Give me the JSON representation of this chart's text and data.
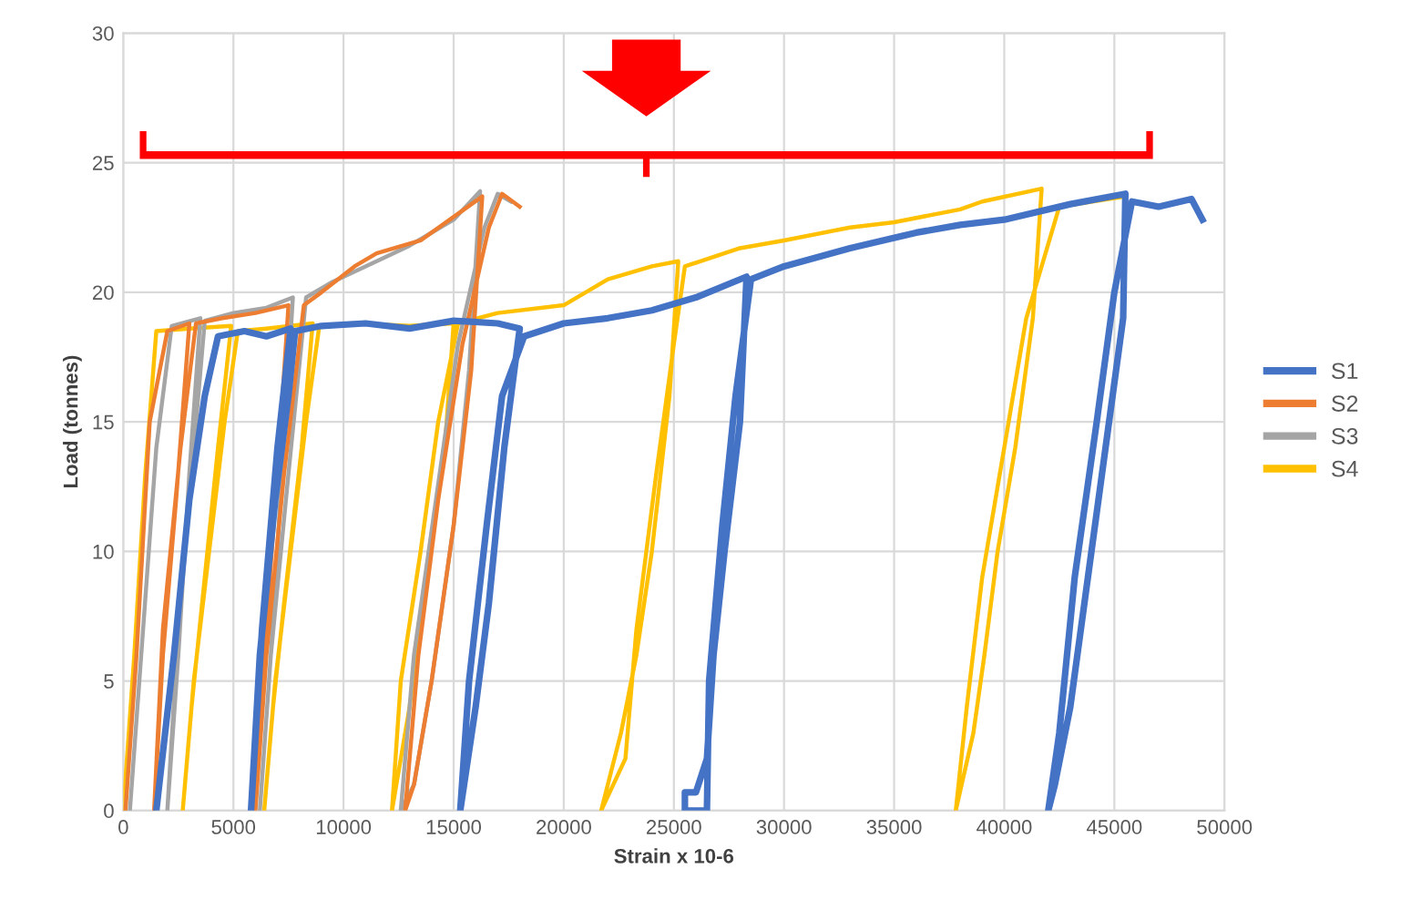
{
  "chart_data": {
    "type": "line",
    "xlabel": "Strain x 10-6",
    "ylabel": "Load (tonnes)",
    "xlim": [
      0,
      50000
    ],
    "ylim": [
      0,
      30
    ],
    "xticks": [
      0,
      5000,
      10000,
      15000,
      20000,
      25000,
      30000,
      35000,
      40000,
      45000,
      50000
    ],
    "yticks": [
      0,
      5,
      10,
      15,
      20,
      25,
      30
    ],
    "grid": true,
    "legend": "right",
    "marker": "none",
    "line_style": "solid",
    "series": [
      {
        "name": "S1",
        "color": "#4472c4",
        "x": [
          1500,
          2300,
          3000,
          3700,
          4300,
          5500,
          6500,
          7600,
          7000,
          6300,
          5800,
          6200,
          6900,
          7500,
          7800,
          9000,
          11000,
          13000,
          15000,
          17000,
          18000,
          17300,
          16600,
          16000,
          15300,
          15700,
          16500,
          17200,
          18200,
          20000,
          22000,
          24000,
          26000,
          28300,
          28000,
          27300,
          26800,
          26500,
          26000,
          25500,
          25500,
          26500,
          26600,
          27200,
          27800,
          28500,
          30000,
          33000,
          36000,
          38000,
          40000,
          43000,
          45500,
          45400,
          44600,
          43800,
          43000,
          42300,
          42000,
          42500,
          43200,
          44200,
          45000,
          45800,
          47000,
          48500,
          49000
        ],
        "values": [
          0,
          6,
          12,
          16,
          18.3,
          18.5,
          18.3,
          18.6,
          14,
          7,
          0,
          6,
          12,
          16,
          18.5,
          18.7,
          18.8,
          18.6,
          18.9,
          18.8,
          18.6,
          14,
          8,
          4,
          0,
          5,
          11,
          16,
          18.3,
          18.8,
          19,
          19.3,
          19.8,
          20.6,
          15,
          10,
          6,
          2,
          0.7,
          0.7,
          0,
          0,
          5,
          11,
          16,
          20.5,
          21,
          21.7,
          22.3,
          22.6,
          22.8,
          23.4,
          23.8,
          19,
          14,
          9,
          4,
          1,
          0,
          3,
          9,
          15,
          20,
          23.5,
          23.3,
          23.6,
          22.8
        ]
      },
      {
        "name": "S2",
        "color": "#ed7d31",
        "x": [
          100,
          600,
          1200,
          2000,
          3000,
          2400,
          1800,
          1400,
          1800,
          2600,
          3300,
          4500,
          6000,
          7500,
          7000,
          6400,
          6000,
          6500,
          7300,
          8200,
          9000,
          10500,
          11500,
          13500,
          16300,
          15800,
          15000,
          14000,
          13200,
          12800,
          13400,
          14300,
          15400,
          16600,
          17200,
          18000
        ],
        "values": [
          0,
          6,
          15,
          18.5,
          18.8,
          12,
          6,
          0,
          7,
          14,
          18.8,
          19,
          19.2,
          19.5,
          13,
          6,
          0,
          6,
          13,
          19.5,
          20,
          21,
          21.5,
          22,
          23.7,
          17,
          11,
          5,
          1,
          0,
          6,
          12,
          18,
          22.5,
          23.8,
          23.3
        ]
      },
      {
        "name": "S3",
        "color": "#a5a5a5",
        "x": [
          300,
          900,
          1500,
          2200,
          3500,
          3000,
          2500,
          2000,
          2500,
          3100,
          3700,
          5000,
          6500,
          7700,
          7200,
          6700,
          6200,
          6700,
          7500,
          8300,
          9500,
          11000,
          13000,
          15000,
          16200,
          15700,
          15000,
          14000,
          13200,
          12600,
          13200,
          14200,
          15200,
          16400,
          17000,
          17600
        ],
        "values": [
          0,
          7,
          14,
          18.7,
          19,
          13,
          6,
          0,
          7,
          13,
          18.9,
          19.2,
          19.4,
          19.8,
          13,
          6,
          0,
          6,
          13,
          19.8,
          20.4,
          21,
          21.8,
          22.8,
          23.9,
          17,
          11,
          5,
          1,
          0,
          6,
          12,
          18,
          22.5,
          23.8,
          23.5
        ]
      },
      {
        "name": "S4",
        "color": "#ffc000",
        "x": [
          0,
          500,
          1000,
          1500,
          3000,
          4900,
          4300,
          3700,
          3100,
          2700,
          3200,
          3900,
          4600,
          5200,
          6500,
          8600,
          8100,
          7300,
          6800,
          6400,
          6900,
          7600,
          8300,
          8900,
          10500,
          13000,
          15000,
          14600,
          13800,
          13000,
          12200,
          12600,
          13500,
          14300,
          15200,
          17000,
          20000,
          22000,
          24000,
          25200,
          24800,
          24000,
          23300,
          22600,
          21700,
          22800,
          23300,
          24200,
          25000,
          25500,
          28000,
          30000,
          33000,
          35000,
          38000,
          39000,
          41700,
          41300,
          40500,
          39700,
          39100,
          38600,
          37800,
          38300,
          39000,
          40000,
          41000,
          42500,
          44000,
          45500
        ],
        "values": [
          0,
          6,
          13,
          18.5,
          18.6,
          18.7,
          14,
          9,
          4,
          0,
          5,
          10,
          15,
          18.5,
          18.6,
          18.8,
          14,
          8,
          4,
          0,
          5,
          10,
          15,
          18.7,
          18.8,
          18.7,
          18.8,
          14,
          9,
          4,
          0,
          5,
          10,
          15,
          18.8,
          19.2,
          19.5,
          20.5,
          21,
          21.2,
          16,
          10,
          6,
          3,
          0,
          2,
          7,
          13,
          18,
          21,
          21.7,
          22,
          22.5,
          22.7,
          23.2,
          23.5,
          24,
          19,
          14,
          10,
          6,
          3,
          0,
          4,
          9,
          14,
          19,
          23.3,
          23.5,
          23.7
        ]
      }
    ]
  }
}
